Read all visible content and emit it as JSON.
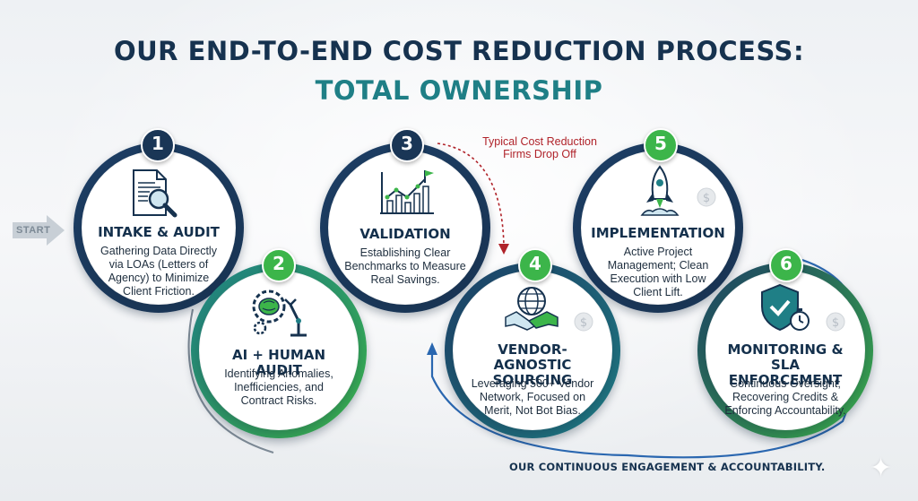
{
  "title_line1": "OUR END-TO-END COST REDUCTION PROCESS:",
  "title_line2": "TOTAL OWNERSHIP",
  "start_label": "START",
  "drop_off_note": "Typical Cost Reduction Firms Drop Off",
  "footer_text": "OUR CONTINUOUS ENGAGEMENT & ACCOUNTABILITY.",
  "colors": {
    "navy": "#16324f",
    "teal": "#1f7f86",
    "green": "#3cb54a",
    "red": "#b0232a"
  },
  "steps": [
    {
      "number": "1",
      "title": "INTAKE & AUDIT",
      "description": "Gathering Data Directly via LOAs (Letters of Agency) to Minimize Client Friction.",
      "icon": "document-magnifier-icon"
    },
    {
      "number": "2",
      "title": "AI + HUMAN AUDIT",
      "description": "Identifying Anomalies, Inefficiencies, and Contract Risks.",
      "icon": "brain-gear-robot-arm-icon"
    },
    {
      "number": "3",
      "title": "VALIDATION",
      "description": "Establishing Clear Benchmarks to Measure Real Savings.",
      "icon": "chart-flag-icon"
    },
    {
      "number": "4",
      "title": "VENDOR-AGNOSTIC SOURCING",
      "description": "Leveraging 500+ Vendor Network, Focused on Merit, Not Bot Bias.",
      "icon": "globe-handshake-icon"
    },
    {
      "number": "5",
      "title": "IMPLEMENTATION",
      "description": "Active Project Management; Clean Execution with Low Client Lift.",
      "icon": "rocket-icon"
    },
    {
      "number": "6",
      "title": "MONITORING & SLA ENFORCEMENT",
      "description": "Continuous Oversight; Recovering Credits & Enforcing Accountability.",
      "icon": "shield-stopwatch-icon"
    }
  ]
}
